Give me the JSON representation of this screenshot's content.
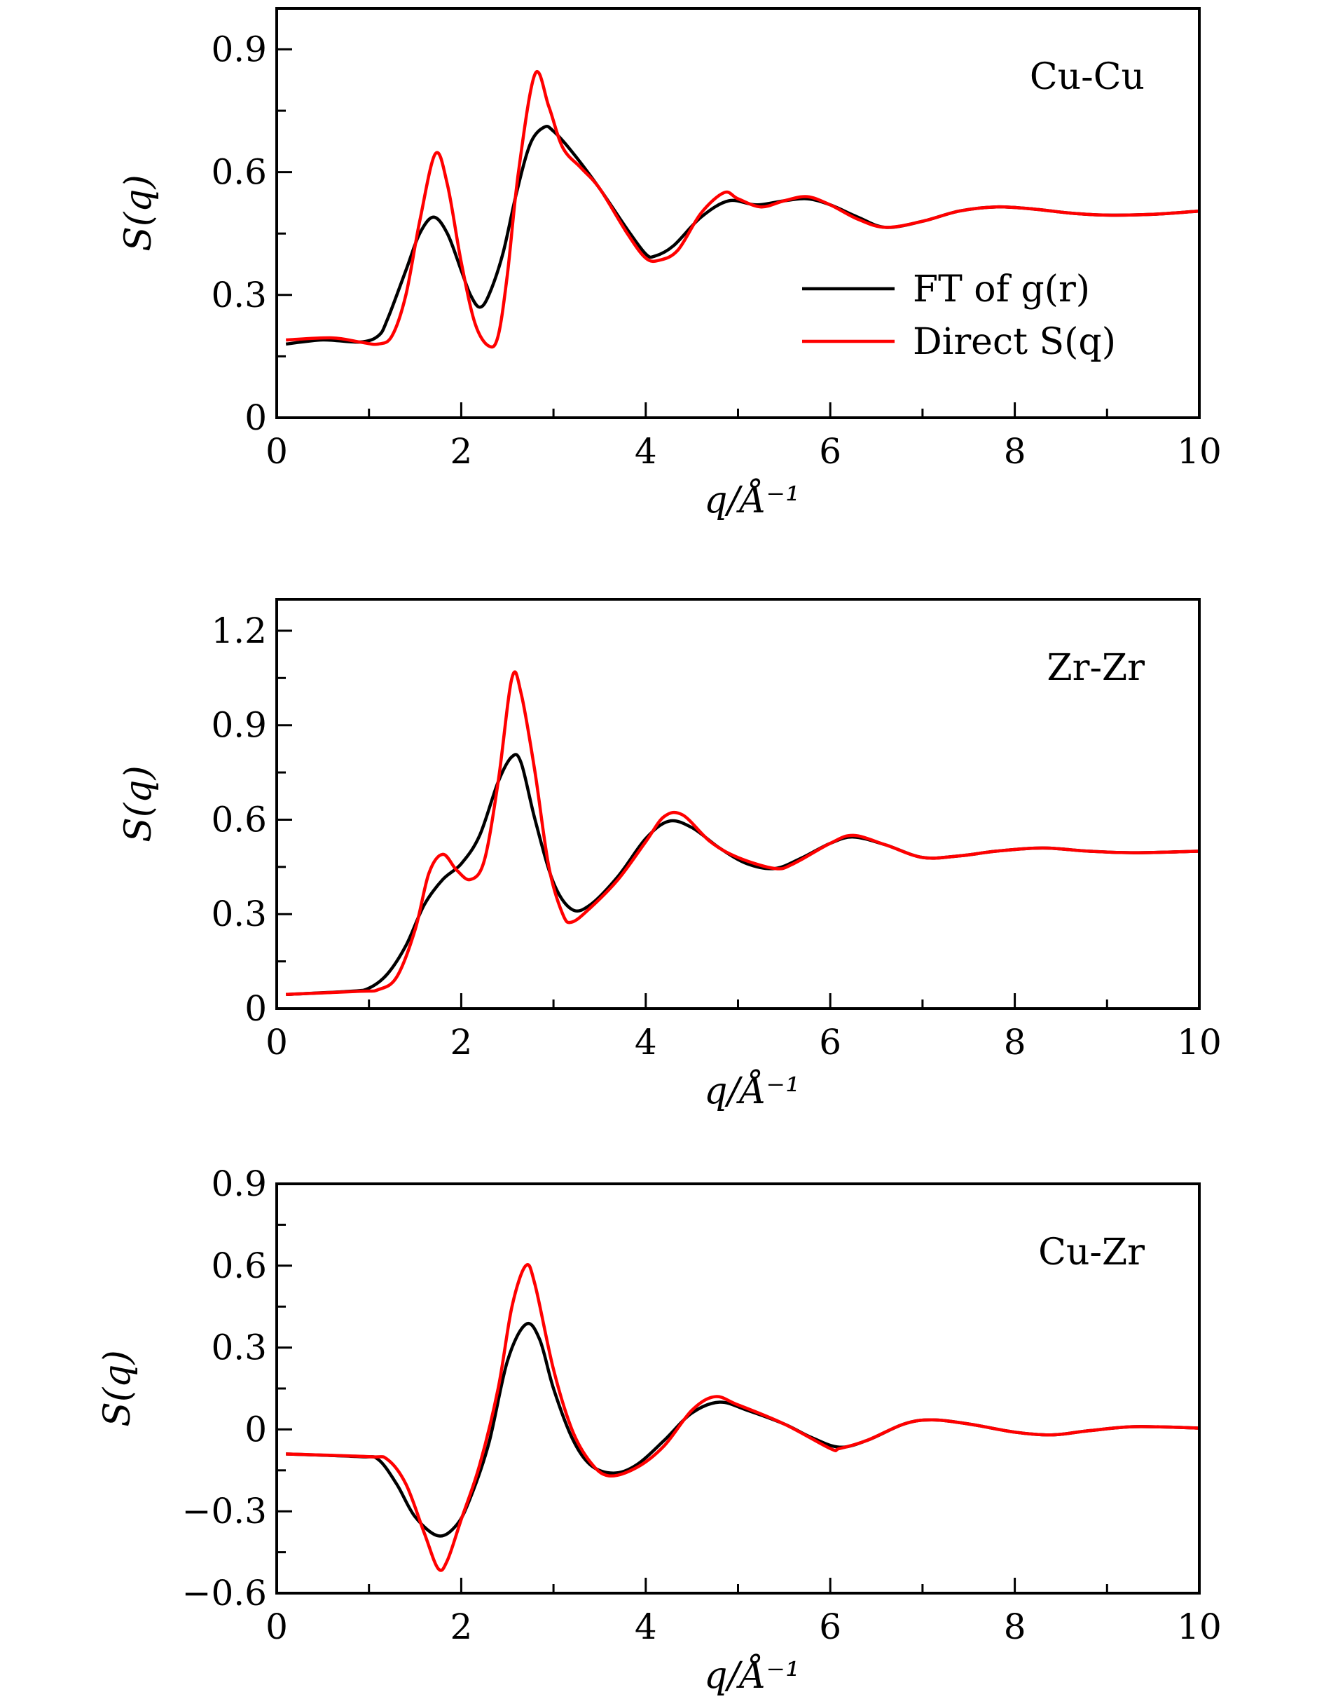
{
  "chart_data": [
    {
      "type": "line",
      "panel_label": "Cu-Cu",
      "xlabel": "q/Å⁻¹",
      "ylabel": "S(q)",
      "xlim": [
        0,
        10
      ],
      "ylim": [
        0,
        1.0
      ],
      "xticks": [
        0,
        2,
        4,
        6,
        8,
        10
      ],
      "xtick_labels": [
        "0",
        "2",
        "4",
        "6",
        "8",
        "10"
      ],
      "yticks": [
        0,
        0.3,
        0.6,
        0.9
      ],
      "ytick_labels": [
        "0",
        "0.3",
        "0.6",
        "0.9"
      ],
      "grid": false,
      "legend": {
        "placement": "right",
        "entries": [
          "FT of g(r)",
          "Direct S(q)"
        ]
      },
      "series": [
        {
          "name": "FT of g(r)",
          "color": "#000000",
          "points": [
            [
              0.1,
              0.18
            ],
            [
              0.5,
              0.19
            ],
            [
              0.9,
              0.185
            ],
            [
              1.1,
              0.2
            ],
            [
              1.2,
              0.24
            ],
            [
              1.4,
              0.36
            ],
            [
              1.55,
              0.45
            ],
            [
              1.7,
              0.49
            ],
            [
              1.85,
              0.45
            ],
            [
              2.0,
              0.36
            ],
            [
              2.1,
              0.3
            ],
            [
              2.2,
              0.27
            ],
            [
              2.3,
              0.3
            ],
            [
              2.45,
              0.4
            ],
            [
              2.6,
              0.55
            ],
            [
              2.75,
              0.67
            ],
            [
              2.9,
              0.71
            ],
            [
              3.0,
              0.7
            ],
            [
              3.2,
              0.65
            ],
            [
              3.5,
              0.56
            ],
            [
              3.8,
              0.46
            ],
            [
              4.0,
              0.4
            ],
            [
              4.1,
              0.395
            ],
            [
              4.3,
              0.42
            ],
            [
              4.6,
              0.49
            ],
            [
              4.9,
              0.53
            ],
            [
              5.2,
              0.52
            ],
            [
              5.5,
              0.53
            ],
            [
              5.75,
              0.535
            ],
            [
              6.0,
              0.52
            ],
            [
              6.3,
              0.49
            ],
            [
              6.6,
              0.465
            ],
            [
              7.0,
              0.48
            ],
            [
              7.4,
              0.505
            ],
            [
              7.8,
              0.515
            ],
            [
              8.2,
              0.51
            ],
            [
              8.6,
              0.5
            ],
            [
              9.0,
              0.495
            ],
            [
              9.5,
              0.497
            ],
            [
              10,
              0.505
            ]
          ]
        },
        {
          "name": "Direct S(q)",
          "color": "#ff0000",
          "points": [
            [
              0.1,
              0.19
            ],
            [
              0.6,
              0.195
            ],
            [
              0.9,
              0.185
            ],
            [
              1.1,
              0.18
            ],
            [
              1.25,
              0.2
            ],
            [
              1.4,
              0.3
            ],
            [
              1.55,
              0.48
            ],
            [
              1.72,
              0.645
            ],
            [
              1.85,
              0.57
            ],
            [
              2.0,
              0.38
            ],
            [
              2.15,
              0.23
            ],
            [
              2.3,
              0.175
            ],
            [
              2.4,
              0.2
            ],
            [
              2.5,
              0.35
            ],
            [
              2.62,
              0.6
            ],
            [
              2.8,
              0.84
            ],
            [
              2.95,
              0.76
            ],
            [
              3.1,
              0.66
            ],
            [
              3.3,
              0.61
            ],
            [
              3.5,
              0.56
            ],
            [
              3.8,
              0.45
            ],
            [
              4.0,
              0.39
            ],
            [
              4.15,
              0.385
            ],
            [
              4.35,
              0.41
            ],
            [
              4.6,
              0.5
            ],
            [
              4.85,
              0.55
            ],
            [
              5.0,
              0.535
            ],
            [
              5.25,
              0.515
            ],
            [
              5.5,
              0.53
            ],
            [
              5.75,
              0.54
            ],
            [
              6.0,
              0.52
            ],
            [
              6.3,
              0.485
            ],
            [
              6.6,
              0.465
            ],
            [
              7.0,
              0.48
            ],
            [
              7.4,
              0.505
            ],
            [
              7.8,
              0.515
            ],
            [
              8.2,
              0.51
            ],
            [
              8.6,
              0.5
            ],
            [
              9.0,
              0.495
            ],
            [
              9.5,
              0.497
            ],
            [
              10,
              0.505
            ]
          ]
        }
      ]
    },
    {
      "type": "line",
      "panel_label": "Zr-Zr",
      "xlabel": "q/Å⁻¹",
      "ylabel": "S(q)",
      "xlim": [
        0,
        10
      ],
      "ylim": [
        0,
        1.3
      ],
      "xticks": [
        0,
        2,
        4,
        6,
        8,
        10
      ],
      "xtick_labels": [
        "0",
        "2",
        "4",
        "6",
        "8",
        "10"
      ],
      "yticks": [
        0,
        0.3,
        0.6,
        0.9,
        1.2
      ],
      "ytick_labels": [
        "0",
        "0.3",
        "0.6",
        "0.9",
        "1.2"
      ],
      "grid": false,
      "series": [
        {
          "name": "FT of g(r)",
          "color": "#000000",
          "points": [
            [
              0.1,
              0.045
            ],
            [
              0.8,
              0.055
            ],
            [
              1.0,
              0.065
            ],
            [
              1.2,
              0.11
            ],
            [
              1.4,
              0.2
            ],
            [
              1.6,
              0.33
            ],
            [
              1.8,
              0.41
            ],
            [
              2.0,
              0.46
            ],
            [
              2.2,
              0.55
            ],
            [
              2.4,
              0.72
            ],
            [
              2.55,
              0.8
            ],
            [
              2.65,
              0.78
            ],
            [
              2.8,
              0.6
            ],
            [
              3.0,
              0.4
            ],
            [
              3.2,
              0.315
            ],
            [
              3.4,
              0.33
            ],
            [
              3.7,
              0.42
            ],
            [
              4.0,
              0.54
            ],
            [
              4.25,
              0.595
            ],
            [
              4.5,
              0.575
            ],
            [
              4.8,
              0.51
            ],
            [
              5.1,
              0.46
            ],
            [
              5.4,
              0.445
            ],
            [
              5.7,
              0.48
            ],
            [
              6.0,
              0.525
            ],
            [
              6.25,
              0.545
            ],
            [
              6.6,
              0.52
            ],
            [
              7.0,
              0.48
            ],
            [
              7.4,
              0.485
            ],
            [
              7.8,
              0.5
            ],
            [
              8.3,
              0.51
            ],
            [
              8.8,
              0.5
            ],
            [
              9.3,
              0.495
            ],
            [
              10,
              0.5
            ]
          ]
        },
        {
          "name": "Direct S(q)",
          "color": "#ff0000",
          "points": [
            [
              0.1,
              0.045
            ],
            [
              0.9,
              0.055
            ],
            [
              1.1,
              0.06
            ],
            [
              1.3,
              0.1
            ],
            [
              1.5,
              0.25
            ],
            [
              1.65,
              0.43
            ],
            [
              1.8,
              0.49
            ],
            [
              1.95,
              0.44
            ],
            [
              2.1,
              0.41
            ],
            [
              2.25,
              0.47
            ],
            [
              2.4,
              0.72
            ],
            [
              2.55,
              1.05
            ],
            [
              2.65,
              1.0
            ],
            [
              2.8,
              0.75
            ],
            [
              2.95,
              0.45
            ],
            [
              3.1,
              0.3
            ],
            [
              3.2,
              0.275
            ],
            [
              3.4,
              0.32
            ],
            [
              3.7,
              0.41
            ],
            [
              4.0,
              0.53
            ],
            [
              4.2,
              0.61
            ],
            [
              4.4,
              0.615
            ],
            [
              4.7,
              0.53
            ],
            [
              5.0,
              0.48
            ],
            [
              5.4,
              0.445
            ],
            [
              5.6,
              0.46
            ],
            [
              6.0,
              0.525
            ],
            [
              6.25,
              0.55
            ],
            [
              6.6,
              0.52
            ],
            [
              7.0,
              0.48
            ],
            [
              7.4,
              0.485
            ],
            [
              7.8,
              0.5
            ],
            [
              8.3,
              0.51
            ],
            [
              8.8,
              0.5
            ],
            [
              9.3,
              0.495
            ],
            [
              10,
              0.5
            ]
          ]
        }
      ]
    },
    {
      "type": "line",
      "panel_label": "Cu-Zr",
      "xlabel": "q/Å⁻¹",
      "ylabel": "S(q)",
      "xlim": [
        0,
        10
      ],
      "ylim": [
        -0.6,
        0.9
      ],
      "xticks": [
        0,
        2,
        4,
        6,
        8,
        10
      ],
      "xtick_labels": [
        "0",
        "2",
        "4",
        "6",
        "8",
        "10"
      ],
      "yticks": [
        -0.6,
        -0.3,
        0,
        0.3,
        0.6,
        0.9
      ],
      "ytick_labels": [
        "−0.6",
        "−0.3",
        "0",
        "0.3",
        "0.6",
        "0.9"
      ],
      "grid": false,
      "series": [
        {
          "name": "FT of g(r)",
          "color": "#000000",
          "points": [
            [
              0.1,
              -0.09
            ],
            [
              0.9,
              -0.1
            ],
            [
              1.1,
              -0.11
            ],
            [
              1.3,
              -0.2
            ],
            [
              1.5,
              -0.32
            ],
            [
              1.75,
              -0.39
            ],
            [
              1.95,
              -0.35
            ],
            [
              2.1,
              -0.25
            ],
            [
              2.3,
              -0.05
            ],
            [
              2.5,
              0.25
            ],
            [
              2.7,
              0.385
            ],
            [
              2.85,
              0.33
            ],
            [
              3.0,
              0.15
            ],
            [
              3.2,
              -0.03
            ],
            [
              3.4,
              -0.13
            ],
            [
              3.65,
              -0.16
            ],
            [
              3.9,
              -0.13
            ],
            [
              4.2,
              -0.04
            ],
            [
              4.5,
              0.06
            ],
            [
              4.8,
              0.1
            ],
            [
              5.1,
              0.07
            ],
            [
              5.5,
              0.02
            ],
            [
              5.8,
              -0.03
            ],
            [
              6.1,
              -0.065
            ],
            [
              6.4,
              -0.04
            ],
            [
              6.8,
              0.02
            ],
            [
              7.1,
              0.035
            ],
            [
              7.5,
              0.02
            ],
            [
              8.0,
              -0.01
            ],
            [
              8.4,
              -0.02
            ],
            [
              8.8,
              -0.005
            ],
            [
              9.3,
              0.01
            ],
            [
              10,
              0.005
            ]
          ]
        },
        {
          "name": "Direct S(q)",
          "color": "#ff0000",
          "points": [
            [
              0.1,
              -0.09
            ],
            [
              1.0,
              -0.1
            ],
            [
              1.2,
              -0.11
            ],
            [
              1.4,
              -0.2
            ],
            [
              1.6,
              -0.38
            ],
            [
              1.75,
              -0.51
            ],
            [
              1.85,
              -0.48
            ],
            [
              2.0,
              -0.33
            ],
            [
              2.2,
              -0.13
            ],
            [
              2.4,
              0.15
            ],
            [
              2.55,
              0.45
            ],
            [
              2.7,
              0.6
            ],
            [
              2.8,
              0.53
            ],
            [
              3.0,
              0.22
            ],
            [
              3.2,
              0.0
            ],
            [
              3.4,
              -0.12
            ],
            [
              3.6,
              -0.17
            ],
            [
              3.9,
              -0.14
            ],
            [
              4.2,
              -0.06
            ],
            [
              4.5,
              0.07
            ],
            [
              4.75,
              0.12
            ],
            [
              5.0,
              0.09
            ],
            [
              5.5,
              0.02
            ],
            [
              6.0,
              -0.07
            ],
            [
              6.1,
              -0.07
            ],
            [
              6.4,
              -0.04
            ],
            [
              6.8,
              0.02
            ],
            [
              7.1,
              0.035
            ],
            [
              7.5,
              0.02
            ],
            [
              8.0,
              -0.01
            ],
            [
              8.4,
              -0.02
            ],
            [
              8.8,
              -0.005
            ],
            [
              9.3,
              0.01
            ],
            [
              10,
              0.005
            ]
          ]
        }
      ]
    }
  ]
}
